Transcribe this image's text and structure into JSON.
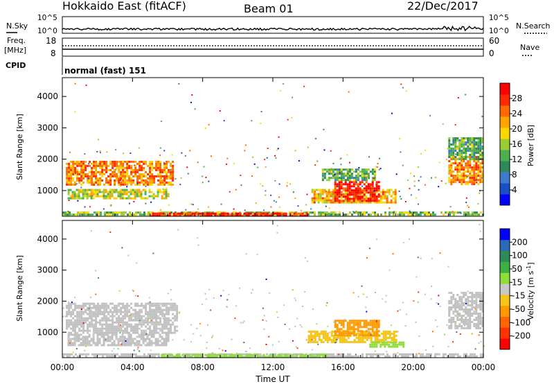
{
  "header": {
    "title": "Hokkaido East (fitACF)",
    "beam": "Beam 01",
    "date": "22/Dec/2017"
  },
  "noise_panel": {
    "left_label": "N.Sky",
    "right_label": "N.Search",
    "tick_top": "10^5",
    "tick_bottom": "10^0"
  },
  "freq_panel": {
    "left_label_line1": "Freq.",
    "left_label_line2": "[MHz]",
    "left_tick_top": "18",
    "left_tick_bottom": "8",
    "right_label": "Nave",
    "right_tick_top": "60",
    "right_tick_bottom": "0"
  },
  "cpid_panel": {
    "label": "CPID",
    "text": "normal (fast) 151"
  },
  "colors": {
    "power": [
      "#0000ff",
      "#1a4fc8",
      "#3c7bd0",
      "#2e8b57",
      "#4caf50",
      "#9acd32",
      "#ffd700",
      "#ffa500",
      "#ff6a00",
      "#ff2a00",
      "#ff0000"
    ],
    "velocity": [
      "#ff0000",
      "#ff3300",
      "#ff6600",
      "#ff9900",
      "#f5c518",
      "#c8c8c8",
      "#8ede3a",
      "#3cb043",
      "#2e8b57",
      "#2a6ab8",
      "#0000ff"
    ],
    "gray": "#c0c0c0"
  },
  "chart_data": [
    {
      "type": "heatmap",
      "title": "",
      "xlabel": "Time UT",
      "ylabel": "Slant Range [km]",
      "colorbar_label": "Power [dB]",
      "colorbar_ticks": [
        "4",
        "8",
        "12",
        "16",
        "20",
        "24",
        "28"
      ],
      "colorbar_range": [
        0,
        30
      ],
      "x_ticks": [
        "00:00",
        "04:00",
        "08:00",
        "12:00",
        "16:00",
        "20:00",
        "00:00"
      ],
      "x_range_hours": [
        0,
        24
      ],
      "y_ticks": [
        "1000",
        "2000",
        "3000",
        "4000"
      ],
      "y_range_km": [
        180,
        4600
      ],
      "regions": [
        {
          "t0": 0.2,
          "t1": 6.3,
          "r0": 1200,
          "r1": 1950,
          "value": 22
        },
        {
          "t0": 0.3,
          "t1": 6.0,
          "r0": 750,
          "r1": 1050,
          "value": 16
        },
        {
          "t0": 0.0,
          "t1": 24.0,
          "r0": 200,
          "r1": 330,
          "value": 14
        },
        {
          "t0": 5.0,
          "t1": 14.0,
          "r0": 200,
          "r1": 300,
          "value": 27
        },
        {
          "t0": 14.2,
          "t1": 19.0,
          "r0": 650,
          "r1": 1050,
          "value": 20
        },
        {
          "t0": 15.5,
          "t1": 18.0,
          "r0": 700,
          "r1": 1300,
          "value": 28
        },
        {
          "t0": 14.8,
          "t1": 17.8,
          "r0": 1350,
          "r1": 1700,
          "value": 12
        },
        {
          "t0": 22.0,
          "t1": 23.9,
          "r0": 1200,
          "r1": 2100,
          "value": 22
        },
        {
          "t0": 22.0,
          "t1": 23.9,
          "r0": 2000,
          "r1": 2700,
          "value": 12
        }
      ]
    },
    {
      "type": "heatmap",
      "title": "",
      "xlabel": "Time UT",
      "ylabel": "Slant Range [km]",
      "colorbar_label": "Velocity [m s^-1]",
      "colorbar_ticks": [
        "-200",
        "-100",
        "-50",
        "-15",
        "15",
        "50",
        "100",
        "200"
      ],
      "colorbar_range": [
        -250,
        250
      ],
      "x_ticks": [
        "00:00",
        "04:00",
        "08:00",
        "12:00",
        "16:00",
        "20:00",
        "00:00"
      ],
      "x_range_hours": [
        0,
        24
      ],
      "y_ticks": [
        "1000",
        "2000",
        "3000",
        "4000"
      ],
      "y_range_km": [
        180,
        4600
      ],
      "regions": [
        {
          "t0": 0.2,
          "t1": 6.5,
          "r0": 1000,
          "r1": 1950,
          "value": 0
        },
        {
          "t0": 0.3,
          "t1": 6.0,
          "r0": 600,
          "r1": 950,
          "value": 0
        },
        {
          "t0": 0.0,
          "t1": 24.0,
          "r0": 200,
          "r1": 320,
          "value": 0
        },
        {
          "t0": 5.5,
          "t1": 15.0,
          "r0": 200,
          "r1": 300,
          "value": 30
        },
        {
          "t0": 14.0,
          "t1": 19.0,
          "r0": 650,
          "r1": 1050,
          "value": -60
        },
        {
          "t0": 15.5,
          "t1": 18.0,
          "r0": 900,
          "r1": 1400,
          "value": -100
        },
        {
          "t0": 17.5,
          "t1": 19.5,
          "r0": 500,
          "r1": 700,
          "value": 30
        },
        {
          "t0": 22.0,
          "t1": 23.9,
          "r0": 1100,
          "r1": 2300,
          "value": 0
        }
      ]
    }
  ]
}
